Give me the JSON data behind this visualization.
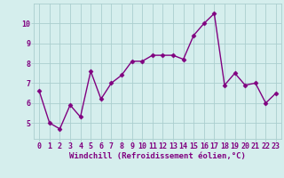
{
  "x": [
    0,
    1,
    2,
    3,
    4,
    5,
    6,
    7,
    8,
    9,
    10,
    11,
    12,
    13,
    14,
    15,
    16,
    17,
    18,
    19,
    20,
    21,
    22,
    23
  ],
  "y": [
    6.6,
    5.0,
    4.7,
    5.9,
    5.3,
    7.6,
    6.2,
    7.0,
    7.4,
    8.1,
    8.1,
    8.4,
    8.4,
    8.4,
    8.2,
    9.4,
    10.0,
    10.5,
    6.9,
    7.5,
    6.9,
    7.0,
    6.0,
    6.5
  ],
  "line_color": "#800080",
  "marker": "D",
  "marker_size": 2.5,
  "bg_color": "#d5eeed",
  "grid_color": "#aacece",
  "xlabel": "Windchill (Refroidissement éolien,°C)",
  "xlim": [
    -0.5,
    23.5
  ],
  "ylim": [
    4.2,
    11.0
  ],
  "yticks": [
    5,
    6,
    7,
    8,
    9,
    10
  ],
  "xticks": [
    0,
    1,
    2,
    3,
    4,
    5,
    6,
    7,
    8,
    9,
    10,
    11,
    12,
    13,
    14,
    15,
    16,
    17,
    18,
    19,
    20,
    21,
    22,
    23
  ],
  "xlabel_fontsize": 6.5,
  "tick_fontsize": 6.0,
  "line_width": 1.0
}
